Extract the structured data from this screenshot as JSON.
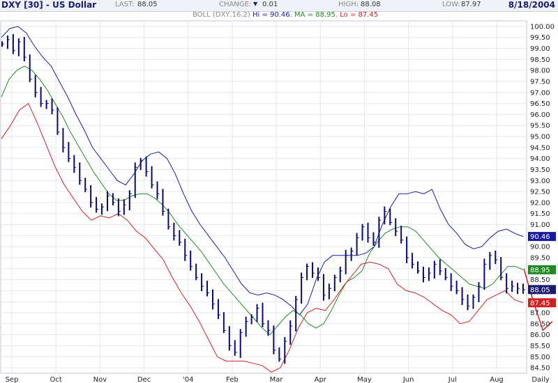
{
  "header": {
    "symbol": "DXY [30] - US Dollar",
    "last_label": "LAST:",
    "last_value": "88.05",
    "change_label": "CHANGE:",
    "change_value": "0.01",
    "high_label": "HIGH:",
    "high_value": "88.08",
    "low_label": "LOW:",
    "low_value": "87.97",
    "date": "8/18/2004",
    "change_arrow_icon": "triangle-down-icon"
  },
  "boll_legend": {
    "label": "BOLL (DXY,16,2)",
    "hi_label": "Hi = ",
    "hi_value": "90.46",
    "ma_label": "MA = ",
    "ma_value": "88.95",
    "lo_label": "Lo = ",
    "lo_value": "87.45",
    "hi_color": "#1a1a9e",
    "ma_color": "#1f8a1f",
    "lo_color": "#d21f1f"
  },
  "chart_data": {
    "type": "line",
    "price_style": "ohlc-bars",
    "ylim": [
      84.25,
      100.25
    ],
    "y_ticks": [
      "100.00",
      "99.50",
      "99.00",
      "98.50",
      "98.00",
      "97.50",
      "97.00",
      "96.50",
      "96.00",
      "95.50",
      "95.00",
      "94.50",
      "94.00",
      "93.50",
      "93.00",
      "92.50",
      "92.00",
      "91.50",
      "91.00",
      "90.50",
      "90.00",
      "89.50",
      "89.00",
      "88.50",
      "88.00",
      "87.50",
      "87.00",
      "86.50",
      "86.00",
      "85.50",
      "85.00",
      "84.50"
    ],
    "x_labels": [
      "Sep",
      "Oct",
      "Nov",
      "Dec",
      "'04",
      "Feb",
      "Mar",
      "Apr",
      "May",
      "Jun",
      "Jul",
      "Aug"
    ],
    "x_axis_note": "Daily",
    "grid": true,
    "axis_side": "right",
    "value_badges": [
      {
        "value": "90.46",
        "color": "#1a1a9e"
      },
      {
        "value": "88.95",
        "color": "#1f8a1f"
      },
      {
        "value": "88.05",
        "color": "#1a1a6e"
      },
      {
        "value": "87.45",
        "color": "#d21f1f"
      }
    ],
    "series": [
      {
        "name": "DXY",
        "color": "#0a0a6e",
        "values": [
          99.2,
          99.4,
          98.9,
          99.3,
          98.6,
          97.6,
          97.0,
          96.5,
          96.5,
          96.2,
          95.2,
          94.5,
          94.0,
          93.6,
          93.0,
          92.6,
          92.0,
          91.7,
          91.8,
          92.3,
          92.0,
          91.6,
          91.9,
          92.4,
          93.6,
          93.9,
          93.4,
          92.8,
          92.4,
          91.6,
          90.9,
          90.5,
          90.2,
          89.6,
          89.1,
          88.6,
          88.2,
          87.9,
          87.4,
          86.9,
          86.2,
          85.5,
          85.2,
          86.1,
          86.6,
          86.8,
          87.2,
          86.5,
          86.2,
          85.3,
          84.9,
          85.7,
          86.4,
          87.6,
          88.6,
          89.1,
          88.8,
          88.6,
          87.8,
          88.1,
          88.6,
          88.9,
          89.6,
          89.8,
          90.4,
          90.9,
          90.4,
          90.2,
          91.2,
          91.6,
          91.1,
          90.7,
          90.3,
          89.5,
          89.2,
          88.9,
          88.6,
          88.8,
          89.2,
          88.9,
          88.6,
          88.2,
          88.0,
          87.6,
          87.3,
          87.7,
          88.2,
          89.2,
          89.6,
          89.4,
          88.6,
          88.1,
          88.2,
          88.1,
          88.05
        ]
      },
      {
        "name": "Hi",
        "color": "#1a1a9e",
        "values": [
          99.5,
          99.9,
          100.0,
          99.7,
          99.1,
          98.6,
          98.2,
          97.5,
          96.8,
          96.0,
          95.3,
          94.5,
          94.0,
          93.5,
          93.0,
          92.8,
          93.3,
          93.9,
          94.2,
          94.3,
          94.0,
          93.3,
          92.4,
          91.6,
          91.0,
          90.5,
          90.0,
          89.5,
          88.9,
          88.3,
          87.9,
          87.8,
          87.9,
          87.8,
          87.6,
          87.3,
          86.9,
          87.4,
          88.5,
          89.3,
          89.6,
          89.6,
          89.6,
          89.6,
          89.7,
          90.0,
          91.0,
          91.8,
          92.4,
          92.4,
          92.5,
          92.4,
          92.6,
          91.7,
          91.0,
          90.6,
          90.1,
          89.9,
          90.0,
          90.4,
          90.7,
          90.8,
          90.6,
          90.46
        ]
      },
      {
        "name": "MA",
        "color": "#1f8a1f",
        "values": [
          96.8,
          97.6,
          98.0,
          98.2,
          98.0,
          97.6,
          97.1,
          96.5,
          95.9,
          95.2,
          94.6,
          94.0,
          93.4,
          92.9,
          92.4,
          92.1,
          92.1,
          92.3,
          92.4,
          92.4,
          92.2,
          91.9,
          91.5,
          91.0,
          90.6,
          90.2,
          89.8,
          89.3,
          88.8,
          88.3,
          87.9,
          87.5,
          87.1,
          86.7,
          86.3,
          86.0,
          86.4,
          86.8,
          87.1,
          86.9,
          86.5,
          86.3,
          86.5,
          87.1,
          87.8,
          88.4,
          88.6,
          88.9,
          89.7,
          90.2,
          90.6,
          90.8,
          90.9,
          90.9,
          90.7,
          90.3,
          89.9,
          89.5,
          89.2,
          88.9,
          88.6,
          88.3,
          88.2,
          88.1,
          88.3,
          88.7,
          89.1,
          89.1,
          88.95
        ]
      },
      {
        "name": "Lo",
        "color": "#d21f1f",
        "values": [
          94.9,
          95.5,
          96.2,
          96.5,
          95.6,
          94.6,
          93.6,
          92.8,
          92.2,
          91.6,
          91.2,
          91.4,
          91.3,
          91.5,
          91.2,
          90.7,
          90.4,
          89.9,
          89.4,
          88.6,
          87.9,
          87.3,
          86.6,
          85.8,
          85.0,
          84.8,
          84.8,
          84.8,
          84.7,
          84.6,
          84.3,
          84.5,
          85.3,
          86.3,
          87.0,
          87.2,
          87.1,
          87.6,
          88.2,
          88.7,
          89.2,
          89.3,
          89.2,
          89.0,
          88.3,
          88.0,
          87.9,
          87.7,
          87.4,
          87.1,
          86.9,
          86.5,
          86.6,
          87.1,
          87.6,
          87.8,
          88.0,
          87.6,
          87.45
        ]
      },
      {
        "name": "Forecast",
        "color": "#d21f1f",
        "values": [
          89.0,
          87.5,
          86.2,
          86.6
        ]
      }
    ]
  }
}
